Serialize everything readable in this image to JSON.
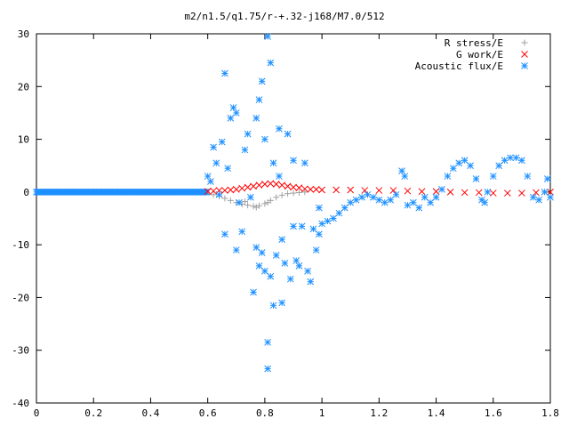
{
  "chart_data": {
    "type": "scatter",
    "title": "m2/n1.5/q1.75/r-+.32-j168/M7.0/512",
    "xlabel": "",
    "ylabel": "",
    "xlim": [
      0,
      1.8
    ],
    "ylim": [
      -40,
      30
    ],
    "x_ticks": [
      "0",
      "0.2",
      "0.4",
      "0.6",
      "0.8",
      "1",
      "1.2",
      "1.4",
      "1.6",
      "1.8"
    ],
    "y_ticks": [
      "30",
      "20",
      "10",
      "0",
      "-10",
      "-20",
      "-30",
      "-40"
    ],
    "grid": false,
    "legend_position": "top-right",
    "series": [
      {
        "name": "R stress/E",
        "marker": "+",
        "color": "#a0a0a0",
        "points": [
          [
            0.62,
            -0.5
          ],
          [
            0.64,
            -0.8
          ],
          [
            0.66,
            -1.2
          ],
          [
            0.68,
            -1.6
          ],
          [
            0.7,
            -2.0
          ],
          [
            0.72,
            -2.3
          ],
          [
            0.74,
            -2.5
          ],
          [
            0.76,
            -2.7
          ],
          [
            0.78,
            -2.6
          ],
          [
            0.8,
            -2.2
          ],
          [
            0.82,
            -1.6
          ],
          [
            0.84,
            -1.0
          ],
          [
            0.86,
            -0.6
          ],
          [
            0.88,
            -0.3
          ],
          [
            0.9,
            -0.2
          ],
          [
            0.92,
            -0.1
          ],
          [
            0.94,
            0.0
          ],
          [
            0.73,
            -1.8
          ],
          [
            0.77,
            -2.9
          ],
          [
            0.81,
            -2.0
          ]
        ]
      },
      {
        "name": "G work/E",
        "marker": "x",
        "color": "#ff0000",
        "points": [
          [
            0.6,
            0.1
          ],
          [
            0.62,
            0.2
          ],
          [
            0.64,
            0.3
          ],
          [
            0.66,
            0.3
          ],
          [
            0.68,
            0.4
          ],
          [
            0.7,
            0.5
          ],
          [
            0.72,
            0.7
          ],
          [
            0.74,
            0.9
          ],
          [
            0.76,
            1.1
          ],
          [
            0.78,
            1.3
          ],
          [
            0.8,
            1.5
          ],
          [
            0.82,
            1.6
          ],
          [
            0.84,
            1.5
          ],
          [
            0.86,
            1.3
          ],
          [
            0.88,
            1.1
          ],
          [
            0.9,
            0.9
          ],
          [
            0.92,
            0.8
          ],
          [
            0.94,
            0.6
          ],
          [
            0.96,
            0.5
          ],
          [
            0.98,
            0.5
          ],
          [
            1.0,
            0.4
          ],
          [
            1.05,
            0.4
          ],
          [
            1.1,
            0.4
          ],
          [
            1.15,
            0.3
          ],
          [
            1.2,
            0.3
          ],
          [
            1.25,
            0.3
          ],
          [
            1.3,
            0.2
          ],
          [
            1.35,
            0.1
          ],
          [
            1.4,
            0.1
          ],
          [
            1.45,
            0.0
          ],
          [
            1.5,
            -0.1
          ],
          [
            1.55,
            -0.1
          ],
          [
            1.6,
            -0.2
          ],
          [
            1.65,
            -0.2
          ],
          [
            1.7,
            -0.2
          ],
          [
            1.75,
            -0.1
          ],
          [
            1.8,
            0.0
          ]
        ]
      },
      {
        "name": "Acoustic flux/E",
        "marker": "*",
        "color": "#1e90ff",
        "points": [
          [
            0.6,
            3.0
          ],
          [
            0.61,
            2.0
          ],
          [
            0.62,
            8.5
          ],
          [
            0.63,
            5.5
          ],
          [
            0.64,
            -0.5
          ],
          [
            0.65,
            9.5
          ],
          [
            0.66,
            22.5
          ],
          [
            0.66,
            -8.0
          ],
          [
            0.67,
            4.5
          ],
          [
            0.68,
            14.0
          ],
          [
            0.69,
            16.0
          ],
          [
            0.7,
            15.0
          ],
          [
            0.7,
            -11.0
          ],
          [
            0.71,
            -2.0
          ],
          [
            0.72,
            -7.5
          ],
          [
            0.73,
            8.0
          ],
          [
            0.74,
            11.0
          ],
          [
            0.75,
            -1.0
          ],
          [
            0.76,
            -19.0
          ],
          [
            0.77,
            14.0
          ],
          [
            0.77,
            -10.5
          ],
          [
            0.78,
            17.5
          ],
          [
            0.78,
            -14.0
          ],
          [
            0.79,
            21.0
          ],
          [
            0.79,
            -11.5
          ],
          [
            0.8,
            -15.0
          ],
          [
            0.8,
            10.0
          ],
          [
            0.81,
            29.5
          ],
          [
            0.81,
            -28.5
          ],
          [
            0.81,
            -33.5
          ],
          [
            0.82,
            24.5
          ],
          [
            0.82,
            -16.0
          ],
          [
            0.83,
            -21.5
          ],
          [
            0.83,
            5.5
          ],
          [
            0.84,
            -12.0
          ],
          [
            0.85,
            3.0
          ],
          [
            0.85,
            12.0
          ],
          [
            0.86,
            -21.0
          ],
          [
            0.86,
            -9.0
          ],
          [
            0.87,
            -13.5
          ],
          [
            0.88,
            11.0
          ],
          [
            0.89,
            -16.5
          ],
          [
            0.9,
            -6.5
          ],
          [
            0.9,
            6.0
          ],
          [
            0.91,
            -13.0
          ],
          [
            0.92,
            -14.0
          ],
          [
            0.93,
            -6.5
          ],
          [
            0.94,
            5.5
          ],
          [
            0.95,
            -15.0
          ],
          [
            0.96,
            -17.0
          ],
          [
            0.97,
            -7.0
          ],
          [
            0.98,
            -11.0
          ],
          [
            0.99,
            -8.0
          ],
          [
            0.99,
            -3.0
          ],
          [
            1.0,
            -6.0
          ],
          [
            1.02,
            -5.5
          ],
          [
            1.04,
            -5.0
          ],
          [
            1.06,
            -4.0
          ],
          [
            1.08,
            -3.0
          ],
          [
            1.1,
            -2.0
          ],
          [
            1.12,
            -1.5
          ],
          [
            1.14,
            -1.0
          ],
          [
            1.16,
            -0.5
          ],
          [
            1.18,
            -1.0
          ],
          [
            1.2,
            -1.5
          ],
          [
            1.22,
            -2.0
          ],
          [
            1.24,
            -1.5
          ],
          [
            1.26,
            -0.5
          ],
          [
            1.28,
            4.0
          ],
          [
            1.29,
            3.0
          ],
          [
            1.3,
            -2.5
          ],
          [
            1.32,
            -2.0
          ],
          [
            1.34,
            -3.0
          ],
          [
            1.36,
            -1.0
          ],
          [
            1.38,
            -2.0
          ],
          [
            1.4,
            -1.0
          ],
          [
            1.42,
            0.5
          ],
          [
            1.44,
            3.0
          ],
          [
            1.46,
            4.5
          ],
          [
            1.48,
            5.5
          ],
          [
            1.5,
            6.0
          ],
          [
            1.52,
            5.0
          ],
          [
            1.54,
            2.5
          ],
          [
            1.56,
            -1.5
          ],
          [
            1.57,
            -2.0
          ],
          [
            1.58,
            0.0
          ],
          [
            1.6,
            3.0
          ],
          [
            1.62,
            5.0
          ],
          [
            1.64,
            6.0
          ],
          [
            1.66,
            6.5
          ],
          [
            1.68,
            6.5
          ],
          [
            1.7,
            6.0
          ],
          [
            1.72,
            3.0
          ],
          [
            1.74,
            -1.0
          ],
          [
            1.76,
            -1.5
          ],
          [
            1.78,
            0.0
          ],
          [
            1.79,
            2.5
          ],
          [
            1.8,
            -1.0
          ]
        ]
      }
    ]
  }
}
